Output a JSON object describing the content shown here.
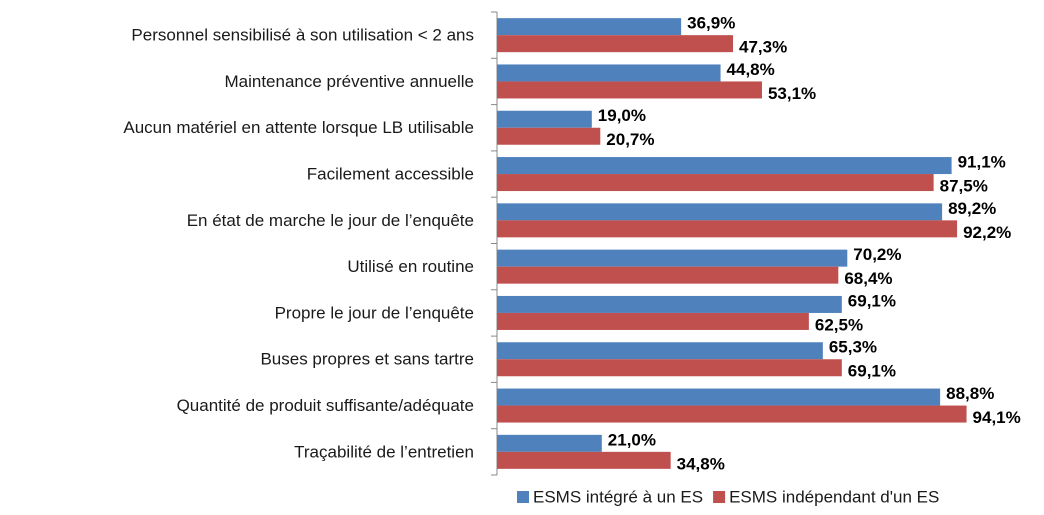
{
  "chart_data": {
    "type": "barh",
    "categories": [
      "Personnel sensibilisé à son utilisation < 2 ans",
      "Maintenance préventive annuelle",
      "Aucun matériel en attente lorsque LB utilisable",
      "Facilement accessible",
      "En état de marche le jour de l’enquête",
      "Utilisé en routine",
      "Propre le jour de l’enquête",
      "Buses propres et sans tartre",
      "Quantité de produit suffisante/adéquate",
      "Traçabilité de l’entretien"
    ],
    "series": [
      {
        "name": "ESMS intégré à un ES",
        "color": "#4f81bd",
        "values": [
          36.9,
          44.8,
          19.0,
          91.1,
          89.2,
          70.2,
          69.1,
          65.3,
          88.8,
          21.0
        ],
        "value_labels": [
          "36,9%",
          "44,8%",
          "19,0%",
          "91,1%",
          "89,2%",
          "70,2%",
          "69,1%",
          "65,3%",
          "88,8%",
          "21,0%"
        ]
      },
      {
        "name": "ESMS indépendant d'un ES",
        "color": "#c0504d",
        "values": [
          47.3,
          53.1,
          20.7,
          87.5,
          92.2,
          68.4,
          62.5,
          69.1,
          94.1,
          34.8
        ],
        "value_labels": [
          "47,3%",
          "53,1%",
          "20,7%",
          "87,5%",
          "92,2%",
          "68,4%",
          "62,5%",
          "69,1%",
          "94,1%",
          "34,8%"
        ]
      }
    ],
    "xlim": [
      0,
      100
    ],
    "legend": "bottom"
  }
}
